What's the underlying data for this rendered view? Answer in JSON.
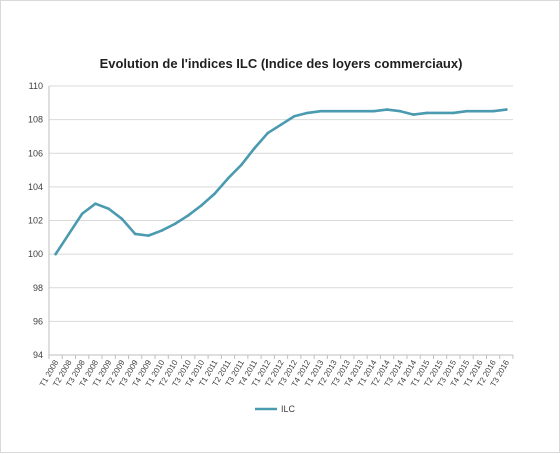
{
  "chart_data": {
    "type": "line",
    "title": "Evolution de l'indices ILC (Indice des loyers commerciaux)",
    "xlabel": "",
    "ylabel": "",
    "ylim": [
      94,
      110
    ],
    "yticks": [
      94,
      96,
      98,
      100,
      102,
      104,
      106,
      108,
      110
    ],
    "grid": true,
    "legend_position": "bottom",
    "categories": [
      "T1 2008",
      "T2 2008",
      "T3 2008",
      "T4 2008",
      "T1 2009",
      "T2 2009",
      "T3 2009",
      "T4 2009",
      "T1 2010",
      "T2 2010",
      "T3 2010",
      "T4 2010",
      "T1 2011",
      "T2 2011",
      "T3 2011",
      "T4 2011",
      "T1 2012",
      "T2 2012",
      "T3 2012",
      "T4 2012",
      "T1 2013",
      "T2 2013",
      "T3 2013",
      "T4 2013",
      "T1 2014",
      "T2 2014",
      "T3 2014",
      "T4 2014",
      "T1 2015",
      "T2 2015",
      "T3 2015",
      "T4 2015",
      "T1 2016",
      "T2 2016",
      "T3 2016"
    ],
    "series": [
      {
        "name": "ILC",
        "color": "#4a9ab0",
        "values": [
          100.0,
          101.2,
          102.4,
          103.0,
          102.7,
          102.1,
          101.2,
          101.1,
          101.4,
          101.8,
          102.3,
          102.9,
          103.6,
          104.5,
          105.3,
          106.3,
          107.2,
          107.7,
          108.2,
          108.4,
          108.5,
          108.5,
          108.5,
          108.5,
          108.5,
          108.6,
          108.5,
          108.3,
          108.4,
          108.4,
          108.4,
          108.5,
          108.5,
          108.5,
          108.6
        ]
      }
    ]
  }
}
